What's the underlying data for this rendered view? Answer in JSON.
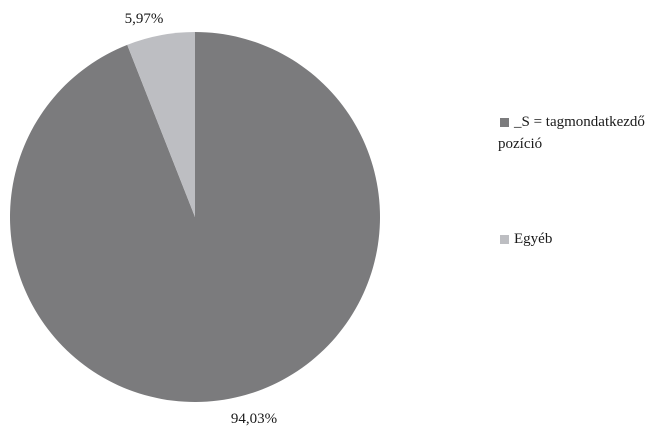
{
  "chart_data": {
    "type": "pie",
    "categories": [
      "_S = tagmondatkezdő pozíció",
      "Egyéb"
    ],
    "values": [
      94.03,
      5.97
    ],
    "data_labels": [
      "94,03%",
      "5,97%"
    ],
    "colors": [
      "#7b7b7d",
      "#bdbec2"
    ],
    "legend": {
      "placement": "right",
      "entries": [
        {
          "line1": "_S = tagmondatkezdő",
          "line2": "pozíció"
        },
        {
          "line1": "Egyéb",
          "line2": ""
        }
      ]
    },
    "start": "top",
    "direction": "clockwise"
  }
}
